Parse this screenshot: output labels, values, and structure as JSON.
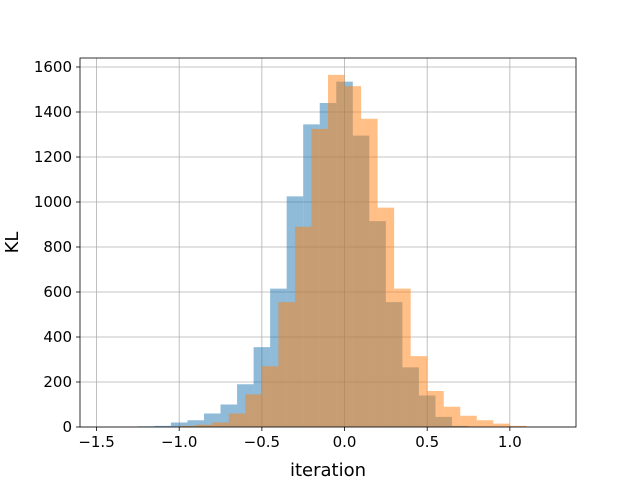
{
  "chart_data": {
    "type": "bar",
    "subtype": "overlapping histogram",
    "title": "",
    "xlabel": "iteration",
    "ylabel": "KL",
    "xlim": [
      -1.6,
      1.4
    ],
    "ylim": [
      0,
      1640
    ],
    "xticks": [
      -1.5,
      -1.0,
      -0.5,
      0.0,
      0.5,
      1.0
    ],
    "xtick_labels": [
      "−1.5",
      "−1.0",
      "−0.5",
      "0.0",
      "0.5",
      "1.0"
    ],
    "yticks": [
      0,
      200,
      400,
      600,
      800,
      1000,
      1200,
      1400,
      1600
    ],
    "ytick_labels": [
      "0",
      "200",
      "400",
      "600",
      "800",
      "1000",
      "1200",
      "1400",
      "1600"
    ],
    "grid": true,
    "legend": "none",
    "series": [
      {
        "color": "#1f77b4",
        "alpha": 0.5,
        "bin_edges": [
          -1.25,
          -1.15,
          -1.05,
          -0.95,
          -0.85,
          -0.75,
          -0.65,
          -0.55,
          -0.45,
          -0.35,
          -0.25,
          -0.15,
          -0.05,
          0.05,
          0.15,
          0.25,
          0.35,
          0.45,
          0.55,
          0.65,
          0.75
        ],
        "counts": [
          3,
          5,
          20,
          30,
          60,
          100,
          190,
          355,
          615,
          1025,
          1345,
          1440,
          1535,
          1295,
          915,
          555,
          265,
          140,
          45,
          5
        ]
      },
      {
        "color": "#ff7f0e",
        "alpha": 0.5,
        "bin_edges": [
          -1.0,
          -0.9,
          -0.8,
          -0.7,
          -0.6,
          -0.5,
          -0.4,
          -0.3,
          -0.2,
          -0.1,
          0.0,
          0.1,
          0.2,
          0.3,
          0.4,
          0.5,
          0.6,
          0.7,
          0.8,
          0.9,
          1.0,
          1.1
        ],
        "counts": [
          5,
          10,
          20,
          60,
          145,
          270,
          555,
          890,
          1325,
          1565,
          1515,
          1370,
          975,
          615,
          315,
          160,
          90,
          50,
          30,
          15,
          5
        ]
      }
    ]
  }
}
